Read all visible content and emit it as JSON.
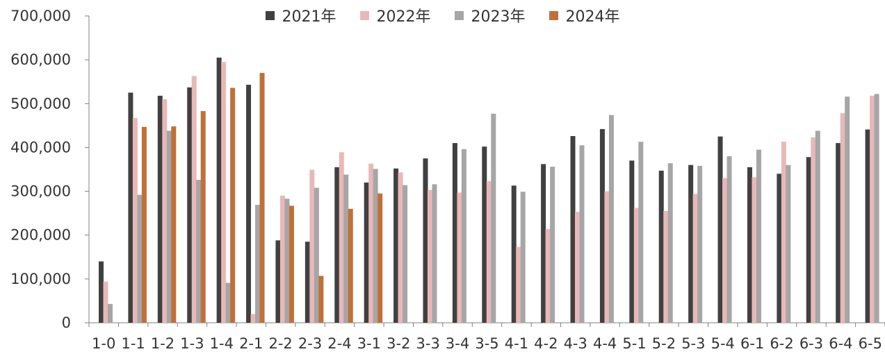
{
  "chart_data": {
    "type": "bar",
    "title": "",
    "xlabel": "",
    "ylabel": "",
    "ylim": [
      0,
      700000
    ],
    "yticks": [
      0,
      100000,
      200000,
      300000,
      400000,
      500000,
      600000,
      700000
    ],
    "ytick_labels": [
      "0",
      "100,000",
      "200,000",
      "300,000",
      "400,000",
      "500,000",
      "600,000",
      "700,000"
    ],
    "legend_position": "top-center",
    "grid": false,
    "categories": [
      "1-0",
      "1-1",
      "1-2",
      "1-3",
      "1-4",
      "2-1",
      "2-2",
      "2-3",
      "2-4",
      "3-1",
      "3-2",
      "3-3",
      "3-4",
      "3-5",
      "4-1",
      "4-2",
      "4-3",
      "4-4",
      "5-1",
      "5-2",
      "5-3",
      "5-4",
      "6-1",
      "6-2",
      "6-3",
      "6-4",
      "6-5"
    ],
    "series": [
      {
        "name": "2021年",
        "color": "#404040",
        "values": [
          140000,
          525000,
          518000,
          537000,
          605000,
          543000,
          188000,
          185000,
          355000,
          320000,
          352000,
          375000,
          410000,
          402000,
          313000,
          362000,
          426000,
          442000,
          370000,
          347000,
          360000,
          425000,
          355000,
          340000,
          378000,
          410000,
          441000
        ]
      },
      {
        "name": "2022年",
        "color": "#E8B8B8",
        "values": [
          94000,
          467000,
          510000,
          563000,
          595000,
          20000,
          290000,
          349000,
          389000,
          363000,
          343000,
          303000,
          297000,
          323000,
          173000,
          214000,
          253000,
          300000,
          262000,
          255000,
          294000,
          330000,
          332000,
          413000,
          423000,
          478000,
          518000
        ]
      },
      {
        "name": "2023年",
        "color": "#A6A6A6",
        "values": [
          43000,
          292000,
          438000,
          326000,
          91000,
          269000,
          283000,
          308000,
          338000,
          351000,
          314000,
          316000,
          396000,
          477000,
          299000,
          356000,
          405000,
          474000,
          413000,
          364000,
          358000,
          380000,
          395000,
          360000,
          438000,
          516000,
          522000
        ]
      },
      {
        "name": "2024年",
        "color": "#C0703A",
        "values": [
          null,
          447000,
          448000,
          483000,
          536000,
          570000,
          267000,
          107000,
          260000,
          295000,
          null,
          null,
          null,
          null,
          null,
          null,
          null,
          null,
          null,
          null,
          null,
          null,
          null,
          null,
          null,
          null,
          null
        ]
      }
    ]
  }
}
